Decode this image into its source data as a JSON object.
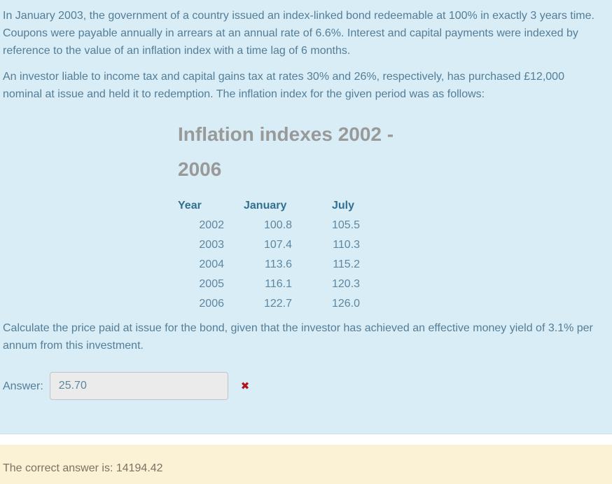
{
  "question": {
    "paragraph1": "In January 2003, the government of a country issued an index-linked bond redeemable at 100% in exactly 3 years time. Coupons were payable annually in arrears at an annual rate of 6.6%. Interest and capital payments were indexed by reference to the value of an inflation index with a time lag of 6 months.",
    "paragraph2": "An investor liable to income tax and capital gains tax at rates 30% and 26%, respectively, has purchased £12,000 nominal at issue and held it to redemption. The inflation index for the given period was as follows:",
    "paragraph3": "Calculate the price paid at issue for the bond, given that the investor has achieved an effective money yield of 3.1% per annum from this investment."
  },
  "inflation_table": {
    "title": "Inflation indexes 2002 - 2006",
    "columns": [
      "Year",
      "January",
      "July"
    ],
    "rows": [
      {
        "year": "2002",
        "january": "100.8",
        "july": "105.5"
      },
      {
        "year": "2003",
        "january": "107.4",
        "july": "110.3"
      },
      {
        "year": "2004",
        "january": "113.6",
        "july": "115.2"
      },
      {
        "year": "2005",
        "january": "116.1",
        "july": "120.3"
      },
      {
        "year": "2006",
        "january": "122.7",
        "july": "126.0"
      }
    ]
  },
  "answer": {
    "label": "Answer:",
    "value": "25.70",
    "incorrect_icon": "✖"
  },
  "feedback": {
    "text": "The correct answer is: 14194.42"
  },
  "colors": {
    "question_bg": "#d9edf7",
    "feedback_bg": "#fbf2d5",
    "body_text": "#547d96",
    "table_header_text": "#31708f",
    "table_data_text": "#5d87a0",
    "title_text": "#999999",
    "incorrect_mark": "#b3131c",
    "feedback_text": "#7a7264",
    "input_bg": "#ebebeb",
    "input_border": "#c3c3c3"
  }
}
